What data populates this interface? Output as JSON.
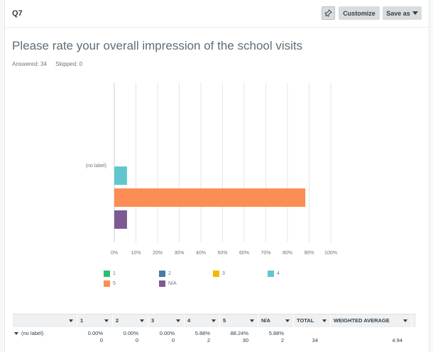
{
  "header": {
    "question_number": "Q7",
    "customize_label": "Customize",
    "save_as_label": "Save as"
  },
  "question": {
    "title": "Please rate your overall impression of the school visits",
    "answered": "Answered: 34",
    "skipped": "Skipped: 0"
  },
  "colors": {
    "1": "#2dbe6c",
    "2": "#4a78b0",
    "3": "#f5b800",
    "4": "#62c7cc",
    "5": "#fb8d55",
    "N/A": "#7d5a92"
  },
  "chart_data": {
    "type": "bar",
    "orientation": "horizontal",
    "categories": [
      "(no label)"
    ],
    "series": [
      {
        "name": "1",
        "values": [
          0.0
        ]
      },
      {
        "name": "2",
        "values": [
          0.0
        ]
      },
      {
        "name": "3",
        "values": [
          0.0
        ]
      },
      {
        "name": "4",
        "values": [
          5.88
        ]
      },
      {
        "name": "5",
        "values": [
          88.24
        ]
      },
      {
        "name": "N/A",
        "values": [
          5.88
        ]
      }
    ],
    "xlim": [
      0,
      100
    ],
    "x_ticks": [
      "0%",
      "10%",
      "20%",
      "30%",
      "40%",
      "50%",
      "60%",
      "70%",
      "80%",
      "90%",
      "100%"
    ],
    "grid": true,
    "legend": "bottom",
    "legend_entries": [
      "1",
      "2",
      "3",
      "4",
      "5",
      "N/A"
    ]
  },
  "table": {
    "headers": [
      "",
      "1",
      "2",
      "3",
      "4",
      "5",
      "N/A",
      "TOTAL",
      "WEIGHTED AVERAGE"
    ],
    "rows": [
      {
        "label": "(no label)",
        "percents": [
          "0.00%",
          "0.00%",
          "0.00%",
          "5.88%",
          "88.24%",
          "5.88%"
        ],
        "counts": [
          "0",
          "0",
          "0",
          "2",
          "30",
          "2"
        ],
        "total": "34",
        "weighted_average": "4.94"
      }
    ]
  }
}
